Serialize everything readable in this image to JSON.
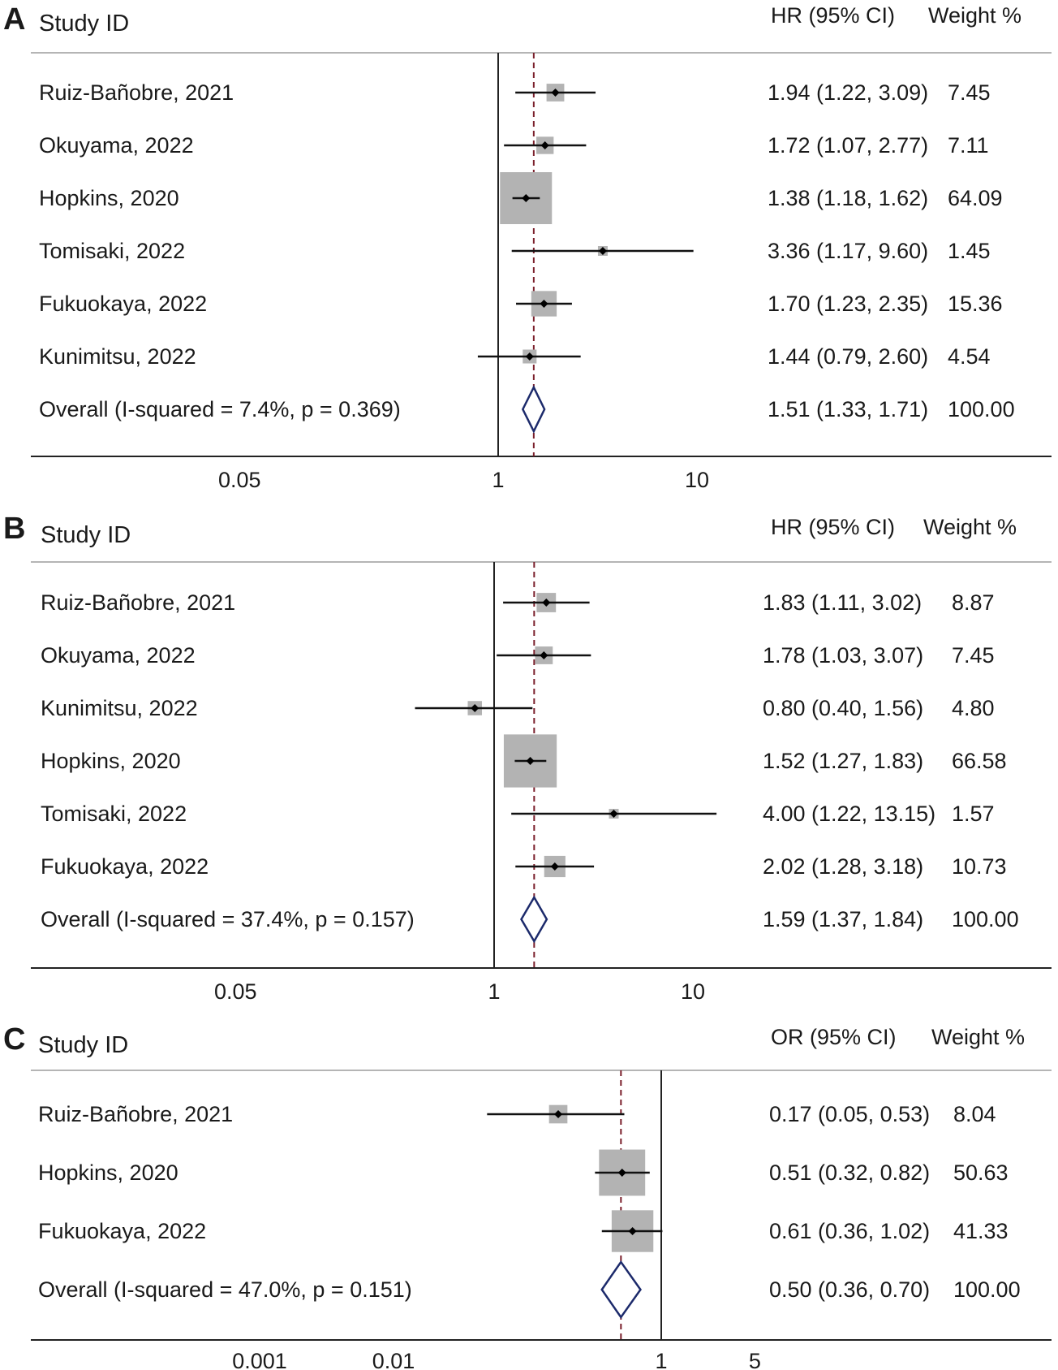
{
  "chart_data": [
    {
      "type": "forest",
      "panel_label": "A",
      "columns": {
        "study": "Study ID",
        "effect": "HR (95% CI)",
        "weight": "Weight %"
      },
      "x_scale": "log",
      "x_ticks": [
        {
          "value": 0.05,
          "label": "0.05"
        },
        {
          "value": 1,
          "label": "1"
        },
        {
          "value": 10,
          "label": "10"
        }
      ],
      "null_line": 1,
      "pooled_line": 1.51,
      "studies": [
        {
          "label": "Ruiz-Bañobre, 2021",
          "est": 1.94,
          "lo": 1.22,
          "hi": 3.09,
          "effect_text": "1.94 (1.22, 3.09)",
          "weight": 7.45,
          "weight_text": "7.45"
        },
        {
          "label": "Okuyama, 2022",
          "est": 1.72,
          "lo": 1.07,
          "hi": 2.77,
          "effect_text": "1.72 (1.07, 2.77)",
          "weight": 7.11,
          "weight_text": "7.11"
        },
        {
          "label": "Hopkins, 2020",
          "est": 1.38,
          "lo": 1.18,
          "hi": 1.62,
          "effect_text": "1.38 (1.18, 1.62)",
          "weight": 64.09,
          "weight_text": "64.09"
        },
        {
          "label": "Tomisaki, 2022",
          "est": 3.36,
          "lo": 1.17,
          "hi": 9.6,
          "effect_text": "3.36 (1.17, 9.60)",
          "weight": 1.45,
          "weight_text": "1.45"
        },
        {
          "label": "Fukuokaya, 2022",
          "est": 1.7,
          "lo": 1.23,
          "hi": 2.35,
          "effect_text": "1.70 (1.23, 2.35)",
          "weight": 15.36,
          "weight_text": "15.36"
        },
        {
          "label": "Kunimitsu, 2022",
          "est": 1.44,
          "lo": 0.79,
          "hi": 2.6,
          "effect_text": "1.44 (0.79, 2.60)",
          "weight": 4.54,
          "weight_text": "4.54"
        }
      ],
      "overall": {
        "label": "Overall  (I-squared = 7.4%, p = 0.369)",
        "est": 1.51,
        "lo": 1.33,
        "hi": 1.71,
        "effect_text": "1.51 (1.33, 1.71)",
        "weight_text": "100.00"
      }
    },
    {
      "type": "forest",
      "panel_label": "B",
      "columns": {
        "study": "Study ID",
        "effect": "HR (95% CI)",
        "weight": "Weight %"
      },
      "x_scale": "log",
      "x_ticks": [
        {
          "value": 0.05,
          "label": "0.05"
        },
        {
          "value": 1,
          "label": "1"
        },
        {
          "value": 10,
          "label": "10"
        }
      ],
      "null_line": 1,
      "pooled_line": 1.59,
      "studies": [
        {
          "label": "Ruiz-Bañobre, 2021",
          "est": 1.83,
          "lo": 1.11,
          "hi": 3.02,
          "effect_text": "1.83 (1.11, 3.02)",
          "weight": 8.87,
          "weight_text": "8.87"
        },
        {
          "label": "Okuyama, 2022",
          "est": 1.78,
          "lo": 1.03,
          "hi": 3.07,
          "effect_text": "1.78 (1.03, 3.07)",
          "weight": 7.45,
          "weight_text": "7.45"
        },
        {
          "label": "Kunimitsu, 2022",
          "est": 0.8,
          "lo": 0.4,
          "hi": 1.56,
          "effect_text": "0.80 (0.40, 1.56)",
          "weight": 4.8,
          "weight_text": "4.80"
        },
        {
          "label": "Hopkins, 2020",
          "est": 1.52,
          "lo": 1.27,
          "hi": 1.83,
          "effect_text": "1.52 (1.27, 1.83)",
          "weight": 66.58,
          "weight_text": "66.58"
        },
        {
          "label": "Tomisaki, 2022",
          "est": 4.0,
          "lo": 1.22,
          "hi": 13.15,
          "effect_text": "4.00 (1.22, 13.15)",
          "weight": 1.57,
          "weight_text": "1.57"
        },
        {
          "label": "Fukuokaya, 2022",
          "est": 2.02,
          "lo": 1.28,
          "hi": 3.18,
          "effect_text": "2.02 (1.28, 3.18)",
          "weight": 10.73,
          "weight_text": "10.73"
        }
      ],
      "overall": {
        "label": "Overall  (I-squared = 37.4%, p = 0.157)",
        "est": 1.59,
        "lo": 1.37,
        "hi": 1.84,
        "effect_text": "1.59 (1.37, 1.84)",
        "weight_text": "100.00"
      }
    },
    {
      "type": "forest",
      "panel_label": "C",
      "columns": {
        "study": "Study ID",
        "effect": "OR (95% CI)",
        "weight": "Weight %"
      },
      "x_scale": "log",
      "x_ticks": [
        {
          "value": 0.001,
          "label": "0.001"
        },
        {
          "value": 0.01,
          "label": "0.01"
        },
        {
          "value": 1,
          "label": "1"
        },
        {
          "value": 5,
          "label": "5"
        }
      ],
      "null_line": 1,
      "pooled_line": 0.5,
      "studies": [
        {
          "label": "Ruiz-Bañobre, 2021",
          "est": 0.17,
          "lo": 0.05,
          "hi": 0.53,
          "effect_text": "0.17 (0.05, 0.53)",
          "weight": 8.04,
          "weight_text": "8.04"
        },
        {
          "label": "Hopkins, 2020",
          "est": 0.51,
          "lo": 0.32,
          "hi": 0.82,
          "effect_text": "0.51 (0.32, 0.82)",
          "weight": 50.63,
          "weight_text": "50.63"
        },
        {
          "label": "Fukuokaya, 2022",
          "est": 0.61,
          "lo": 0.36,
          "hi": 1.02,
          "effect_text": "0.61 (0.36, 1.02)",
          "weight": 41.33,
          "weight_text": "41.33"
        }
      ],
      "overall": {
        "label": "Overall  (I-squared = 47.0%, p = 0.151)",
        "est": 0.5,
        "lo": 0.36,
        "hi": 0.7,
        "effect_text": "0.50 (0.36, 0.70)",
        "weight_text": "100.00"
      }
    }
  ],
  "colors": {
    "box": "#b3b3b3",
    "ci_line": "#111111",
    "diamond": "#1c2a6b",
    "pooled_line": "#7a1f2b",
    "rule": "#b5b5b5",
    "axis": "#222222"
  }
}
